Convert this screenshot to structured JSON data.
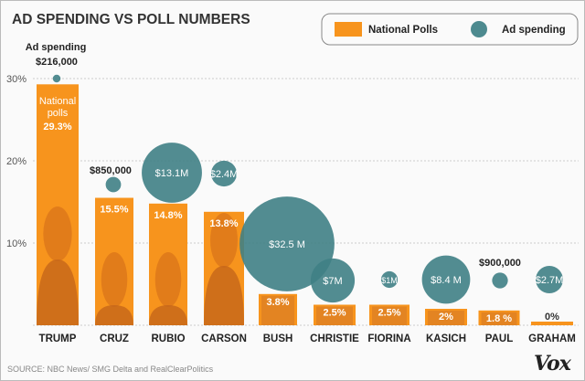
{
  "chart_data": {
    "type": "bar",
    "title": "AD SPENDING VS POLL NUMBERS",
    "legend": {
      "placement": "top-right",
      "entries": [
        {
          "label": "National Polls",
          "shape": "square",
          "color": "#f7941d"
        },
        {
          "label": "Ad spending",
          "shape": "circle",
          "color": "#4d8a8f"
        }
      ]
    },
    "ylim": [
      0,
      30
    ],
    "yticks": [
      "10%",
      "20%",
      "30%"
    ],
    "ytick_values": [
      10,
      20,
      30
    ],
    "grid": true,
    "categories": [
      "TRUMP",
      "CRUZ",
      "RUBIO",
      "CARSON",
      "BUSH",
      "CHRISTIE",
      "FIORINA",
      "KASICH",
      "PAUL",
      "GRAHAM"
    ],
    "series": [
      {
        "name": "National Polls",
        "unit": "%",
        "values": [
          29.3,
          15.5,
          14.8,
          13.8,
          3.8,
          2.5,
          2.5,
          2,
          1.8,
          0
        ],
        "labels": [
          "29.3%",
          "15.5%",
          "14.8%",
          "13.8%",
          "3.8%",
          "2.5%",
          "2.5%",
          "2%",
          "1.8 %",
          "0%"
        ]
      },
      {
        "name": "Ad spending",
        "unit": "USD millions",
        "values": [
          0.216,
          0.85,
          13.1,
          2.4,
          32.5,
          7,
          1,
          8.4,
          0.9,
          2.7
        ],
        "labels": [
          "$216,000",
          "$850,000",
          "$13.1M",
          "$2.4M",
          "$32.5 M",
          "$7M",
          "$1M",
          "$8.4 M",
          "$900,000",
          "$2.7M"
        ]
      }
    ],
    "annotations": {
      "trump_bar_label": [
        "National",
        "polls"
      ],
      "trump_bubble_label": "Ad spending"
    },
    "source": "SOURCE: NBC News/ SMG Delta and RealClearPolitics",
    "logo": "Vox"
  }
}
